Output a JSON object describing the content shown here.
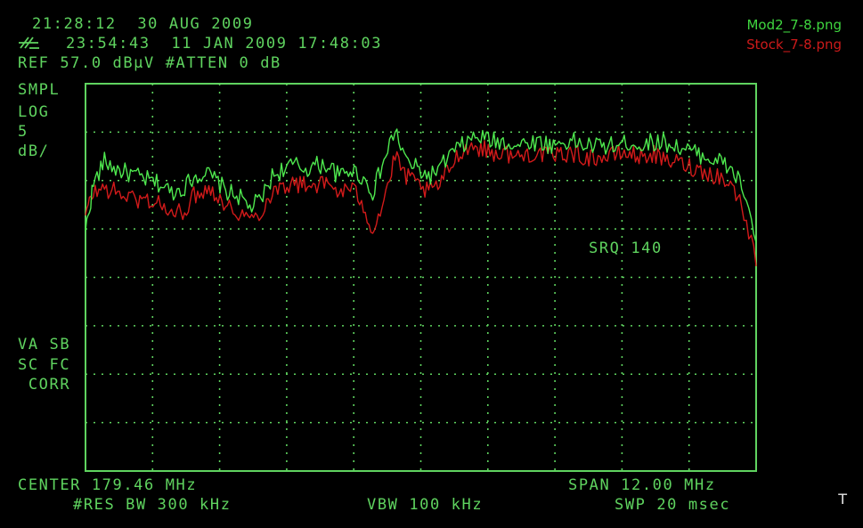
{
  "colors": {
    "background": "#000000",
    "graticule": "#5fd35f",
    "trace_mod2": "#4ee84e",
    "trace_stock": "#d21a1a",
    "legend_mod2": "#3fd63f",
    "legend_stock": "#cc1a1a"
  },
  "header": {
    "time_date": "21:28:12  30 AUG 2009",
    "sweep_stamp": "23:54:43  11 JAN 2009 17:48:03",
    "ref_line": "REF 57.0 dBμV #ATTEN 0 dB",
    "logo_icon": "instrument-logo-icon"
  },
  "legend": {
    "mod2": "Mod2_7-8.png",
    "stock": "Stock_7-8.png"
  },
  "left_annotations": {
    "detector": "SMPL",
    "scale": "LOG",
    "scale_value": "5",
    "scale_unit": "dB/",
    "va_sb": "VA SB",
    "sc_fc": "SC FC",
    "corr": " CORR"
  },
  "marker_text": "SRQ 140",
  "footer": {
    "center": "CENTER 179.46 MHz",
    "span": "SPAN 12.00 MHz",
    "res_bw": "#RES BW 300 kHz",
    "vbw": "VBW 100 kHz",
    "sweep": "SWP 20 msec"
  },
  "corner_mark": "T",
  "chart_data": {
    "type": "line",
    "x_range_mhz": [
      173.46,
      185.46
    ],
    "y_range_dbuv": [
      7.0,
      57.0
    ],
    "ref_level_dbuv": 57.0,
    "db_per_division": 5,
    "grid": true,
    "series": [
      {
        "name": "Mod2_7-8.png",
        "x": [
          173.46,
          173.6,
          173.8,
          174.0,
          174.2,
          174.4,
          174.6,
          174.8,
          175.0,
          175.2,
          175.4,
          175.6,
          175.8,
          176.0,
          176.2,
          176.4,
          176.6,
          176.8,
          177.0,
          177.2,
          177.4,
          177.6,
          177.8,
          178.0,
          178.2,
          178.4,
          178.6,
          178.8,
          179.0,
          179.2,
          179.4,
          179.6,
          179.8,
          180.0,
          180.2,
          180.4,
          180.6,
          180.8,
          181.0,
          181.2,
          181.4,
          181.6,
          181.8,
          182.0,
          182.2,
          182.4,
          182.6,
          182.8,
          183.0,
          183.2,
          183.4,
          183.6,
          183.8,
          184.0,
          184.2,
          184.4,
          184.6,
          184.8,
          185.0,
          185.2,
          185.46
        ],
        "y": [
          38.0,
          44.0,
          47.0,
          46.0,
          45.5,
          45.0,
          44.5,
          44.0,
          43.0,
          43.5,
          45.0,
          45.5,
          44.5,
          43.0,
          42.5,
          41.0,
          42.0,
          45.0,
          46.0,
          46.5,
          46.0,
          46.5,
          46.5,
          45.0,
          46.0,
          45.0,
          43.0,
          47.0,
          51.0,
          47.0,
          46.0,
          45.0,
          46.0,
          48.0,
          49.0,
          50.0,
          50.0,
          49.5,
          49.5,
          49.0,
          49.5,
          49.5,
          49.0,
          49.5,
          49.5,
          49.0,
          49.0,
          49.0,
          49.0,
          49.5,
          49.0,
          49.5,
          49.5,
          49.0,
          48.5,
          48.0,
          47.5,
          47.0,
          46.0,
          44.0,
          37.0
        ]
      },
      {
        "name": "Stock_7-8.png",
        "x": [
          173.46,
          173.6,
          173.8,
          174.0,
          174.2,
          174.4,
          174.6,
          174.8,
          175.0,
          175.2,
          175.4,
          175.6,
          175.8,
          176.0,
          176.2,
          176.4,
          176.6,
          176.8,
          177.0,
          177.2,
          177.4,
          177.6,
          177.8,
          178.0,
          178.2,
          178.4,
          178.6,
          178.8,
          179.0,
          179.2,
          179.4,
          179.6,
          179.8,
          180.0,
          180.2,
          180.4,
          180.6,
          180.8,
          181.0,
          181.2,
          181.4,
          181.6,
          181.8,
          182.0,
          182.2,
          182.4,
          182.6,
          182.8,
          183.0,
          183.2,
          183.4,
          183.6,
          183.8,
          184.0,
          184.2,
          184.4,
          184.6,
          184.8,
          185.0,
          185.2,
          185.46
        ],
        "y": [
          40.0,
          43.0,
          43.5,
          43.0,
          42.5,
          42.0,
          42.0,
          41.5,
          40.0,
          40.5,
          42.5,
          43.5,
          43.0,
          41.0,
          40.5,
          39.5,
          40.5,
          43.0,
          44.0,
          44.0,
          44.0,
          44.0,
          44.0,
          43.0,
          43.5,
          42.0,
          38.0,
          42.0,
          47.5,
          45.0,
          44.0,
          43.0,
          44.0,
          46.5,
          48.5,
          49.0,
          48.5,
          48.0,
          48.0,
          47.5,
          48.0,
          48.0,
          47.5,
          48.0,
          48.0,
          47.5,
          47.5,
          47.5,
          48.0,
          48.0,
          47.5,
          48.0,
          47.0,
          47.0,
          46.5,
          46.0,
          45.5,
          45.0,
          44.0,
          41.5,
          34.0
        ]
      }
    ]
  }
}
